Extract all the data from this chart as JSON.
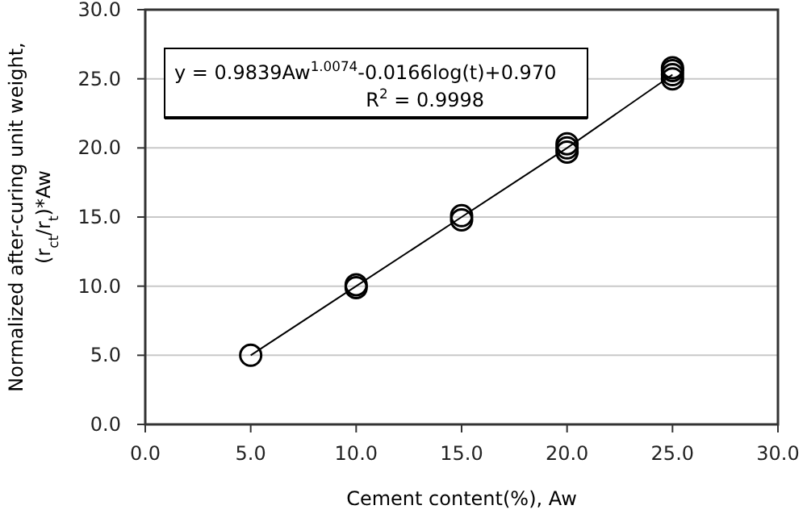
{
  "chart_data": {
    "type": "scatter",
    "xlabel": "Cement content(%),  Aw",
    "ylabel": "Normalized after-curing unit weight,\n(r$_{ct}$/r$_{t}$)*Aw",
    "annotations": [
      "y = 0.9839Aw$^{1.0074}$-0.0166log(t)+0.970",
      "R$^{2}$ = 0.9998"
    ],
    "series": [
      {
        "type": "line",
        "color": "#000000",
        "x": [
          5,
          10,
          15,
          20,
          25
        ],
        "values": [
          5.0,
          10.0,
          15.0,
          20.0,
          25.3
        ],
        "marker": "none"
      },
      {
        "color": "#000000",
        "x": [
          5,
          10,
          10,
          15,
          15,
          20,
          20,
          20,
          25,
          25,
          25,
          25
        ],
        "values": [
          5.0,
          9.9,
          10.1,
          14.8,
          15.1,
          19.7,
          20.0,
          20.3,
          25.0,
          25.3,
          25.6,
          25.8
        ],
        "marker": "circle"
      }
    ],
    "xlim": [
      0,
      30
    ],
    "ylim": [
      0,
      30
    ],
    "xticks": [
      {
        "value": 0,
        "label": "0.0"
      },
      {
        "value": 5,
        "label": "5.0"
      },
      {
        "value": 10,
        "label": "10.0"
      },
      {
        "value": 15,
        "label": "15.0"
      },
      {
        "value": 20,
        "label": "20.0"
      },
      {
        "value": 25,
        "label": "25.0"
      },
      {
        "value": 30,
        "label": "30.0"
      }
    ],
    "yticks": [
      {
        "value": 0,
        "label": "0.0"
      },
      {
        "value": 5,
        "label": "5.0"
      },
      {
        "value": 10,
        "label": "10.0"
      },
      {
        "value": 15,
        "label": "15.0"
      },
      {
        "value": 20,
        "label": "20.0"
      },
      {
        "value": 25,
        "label": "25.0"
      },
      {
        "value": 30,
        "label": "30.0"
      }
    ],
    "grid": "y"
  }
}
